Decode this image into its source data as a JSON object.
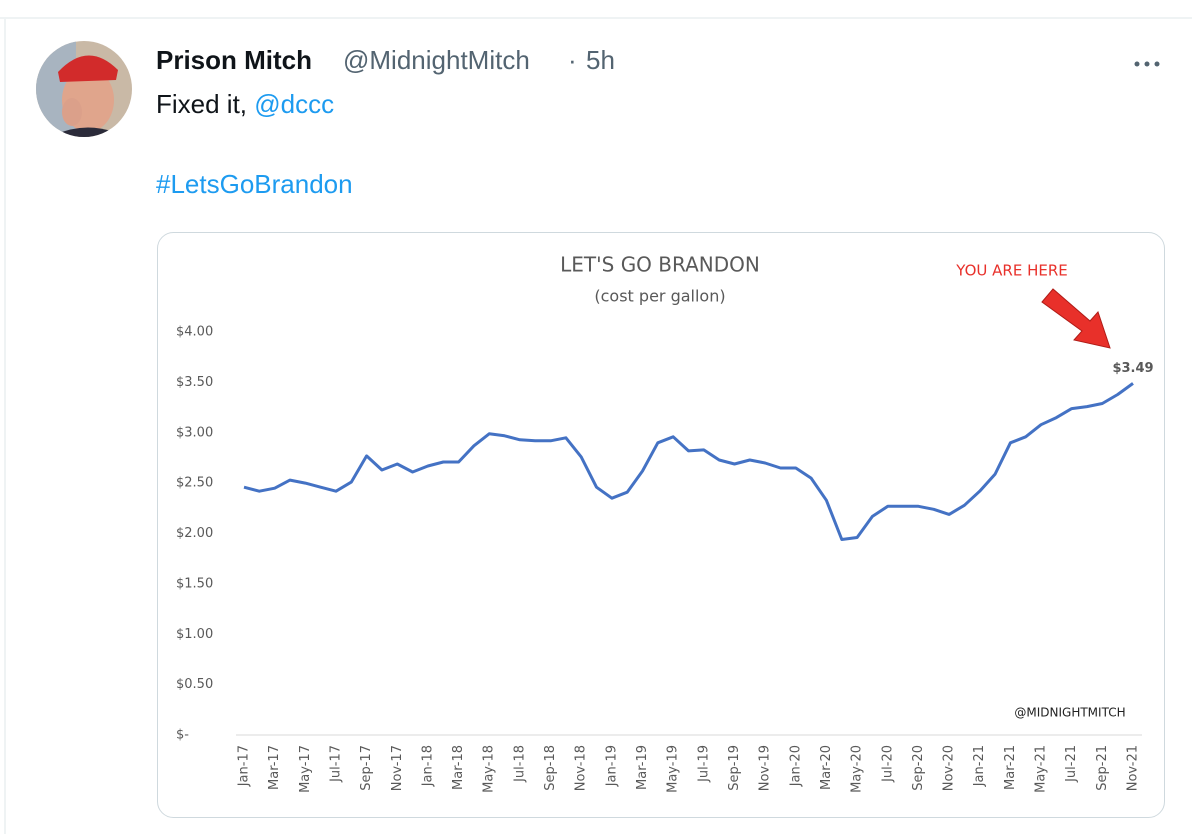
{
  "tweet": {
    "author_name": "Prison Mitch",
    "handle": "@MidnightMitch",
    "separator": "·",
    "time": "5h",
    "text": "Fixed it, ",
    "mention": "@dccc",
    "hashtag": "#LetsGoBrandon"
  },
  "chart_data": {
    "type": "line",
    "title": "LET'S GO BRANDON",
    "subtitle": "(cost per gallon)",
    "annotations": [
      "YOU ARE HERE",
      "@MIDNIGHTMITCH"
    ],
    "categories": [
      "Jan-17",
      null,
      "Mar-17",
      null,
      "May-17",
      null,
      "Jul-17",
      null,
      "Sep-17",
      null,
      "Nov-17",
      null,
      "Jan-18",
      null,
      "Mar-18",
      null,
      "May-18",
      null,
      "Jul-18",
      null,
      "Sep-18",
      null,
      "Nov-18",
      null,
      "Jan-19",
      null,
      "Mar-19",
      null,
      "May-19",
      null,
      "Jul-19",
      null,
      "Sep-19",
      null,
      "Nov-19",
      null,
      "Jan-20",
      null,
      "Mar-20",
      null,
      "May-20",
      null,
      "Jul-20",
      null,
      "Sep-20",
      null,
      "Nov-20",
      null,
      "Jan-21",
      null,
      "Mar-21",
      null,
      "May-21",
      null,
      "Jul-21",
      null,
      "Sep-21",
      null,
      "Nov-21"
    ],
    "values": [
      2.46,
      2.42,
      2.45,
      2.53,
      2.5,
      2.46,
      2.42,
      2.51,
      2.77,
      2.63,
      2.69,
      2.61,
      2.67,
      2.71,
      2.71,
      2.87,
      2.99,
      2.97,
      2.93,
      2.92,
      2.92,
      2.95,
      2.76,
      2.46,
      2.35,
      2.41,
      2.62,
      2.9,
      2.96,
      2.82,
      2.83,
      2.73,
      2.69,
      2.73,
      2.7,
      2.65,
      2.65,
      2.55,
      2.33,
      1.94,
      1.96,
      2.17,
      2.27,
      2.27,
      2.27,
      2.24,
      2.19,
      2.28,
      2.42,
      2.59,
      2.9,
      2.96,
      3.08,
      3.15,
      3.24,
      3.26,
      3.29,
      3.38,
      3.49
    ],
    "value_labels": [
      null,
      null,
      null,
      null,
      null,
      null,
      null,
      null,
      null,
      null,
      null,
      null,
      null,
      null,
      null,
      null,
      null,
      null,
      null,
      null,
      null,
      null,
      null,
      null,
      null,
      null,
      null,
      null,
      null,
      null,
      null,
      null,
      null,
      null,
      null,
      null,
      null,
      null,
      null,
      null,
      null,
      null,
      null,
      null,
      null,
      null,
      null,
      null,
      null,
      null,
      null,
      null,
      null,
      null,
      null,
      null,
      null,
      null,
      "$3.49"
    ],
    "color": "#4472c4",
    "ylim": [
      0,
      4
    ],
    "yticks": [
      {
        "value": 0,
        "label": "$-"
      },
      {
        "value": 0.5,
        "label": "$0.50"
      },
      {
        "value": 1,
        "label": "$1.00"
      },
      {
        "value": 1.5,
        "label": "$1.50"
      },
      {
        "value": 2,
        "label": "$2.00"
      },
      {
        "value": 2.5,
        "label": "$2.50"
      },
      {
        "value": 3,
        "label": "$3.00"
      },
      {
        "value": 3.5,
        "label": "$3.50"
      },
      {
        "value": 4,
        "label": "$4.00"
      }
    ],
    "grid": false
  }
}
